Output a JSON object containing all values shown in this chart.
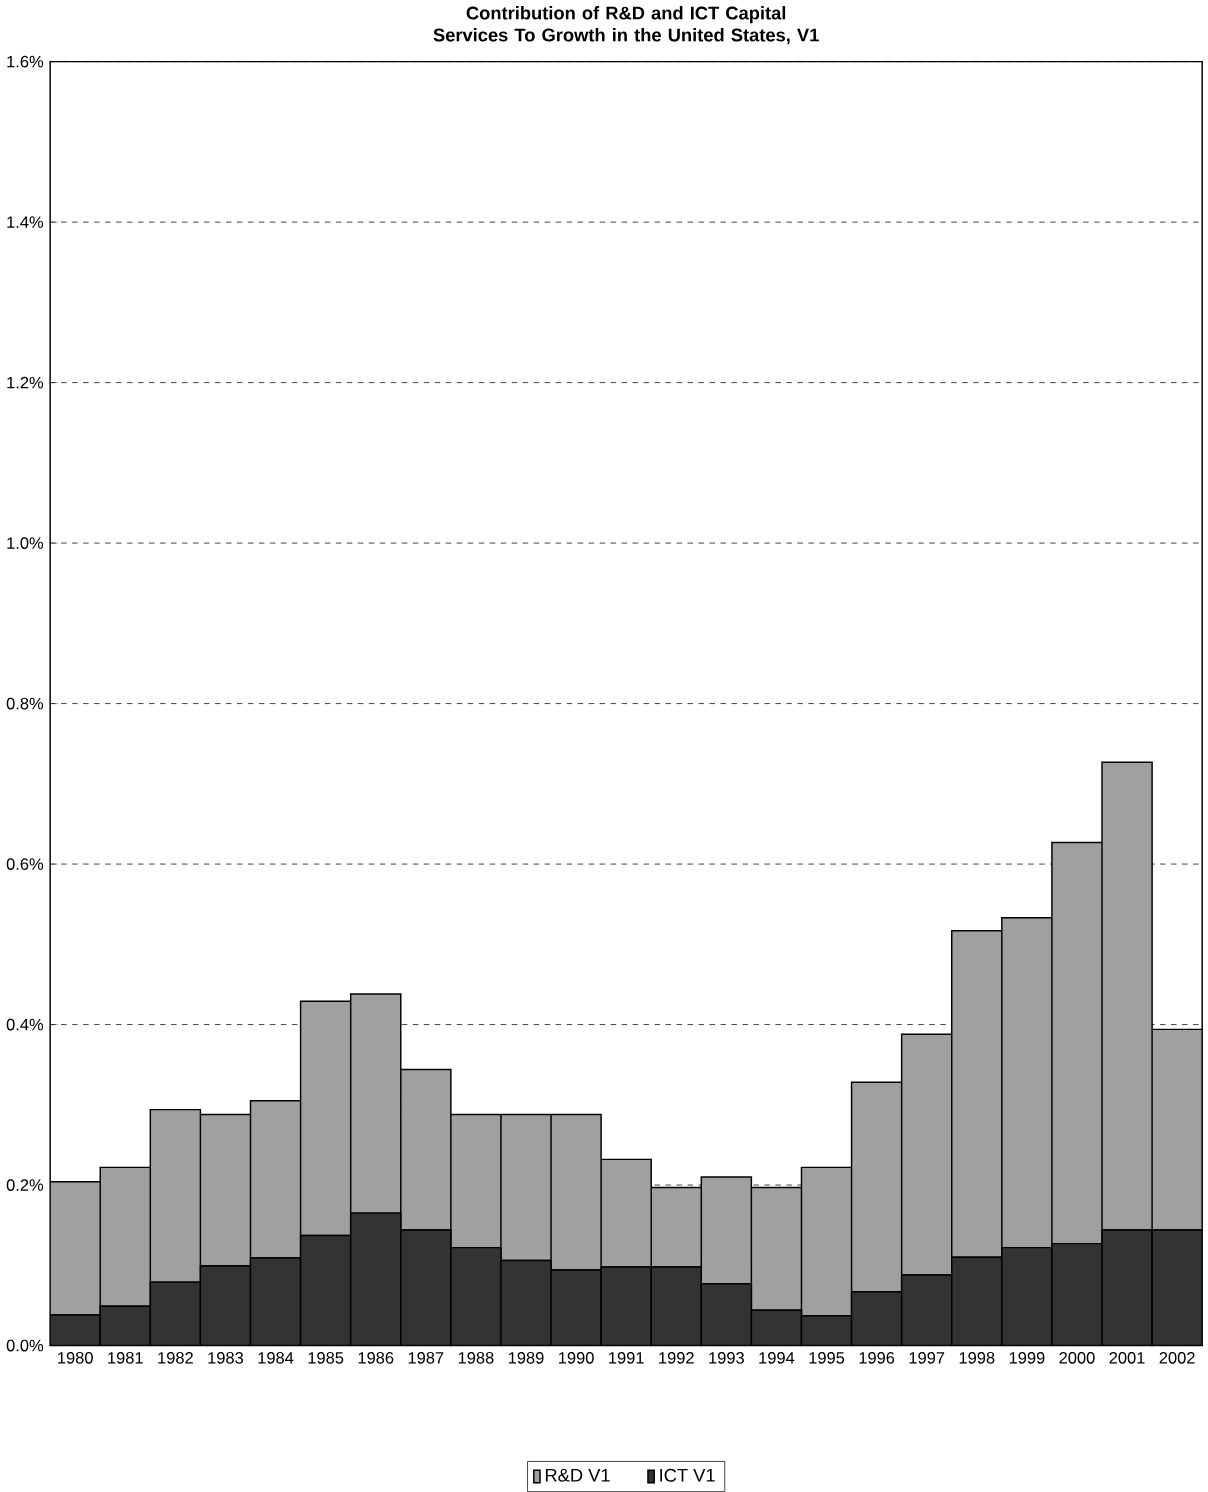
{
  "chart_data": {
    "type": "bar",
    "title": "Contribution of R&D and ICT Capital Services To Growth in the United States, V1",
    "categories": [
      "1980",
      "1981",
      "1982",
      "1983",
      "1984",
      "1985",
      "1986",
      "1987",
      "1988",
      "1989",
      "1990",
      "1991",
      "1992",
      "1993",
      "1994",
      "1995",
      "1996",
      "1997",
      "1998",
      "1999",
      "2000",
      "2001",
      "2002"
    ],
    "stacked": true,
    "series": [
      {
        "name": "ICT V1",
        "color": "#333333",
        "values": [
          0.038,
          0.049,
          0.079,
          0.099,
          0.109,
          0.137,
          0.165,
          0.144,
          0.122,
          0.106,
          0.094,
          0.098,
          0.098,
          0.077,
          0.044,
          0.037,
          0.067,
          0.088,
          0.11,
          0.122,
          0.127,
          0.144,
          0.144
        ]
      },
      {
        "name": "R&D V1",
        "color": "#a0a0a0",
        "values": [
          0.166,
          0.173,
          0.215,
          0.189,
          0.196,
          0.292,
          0.273,
          0.2,
          0.166,
          0.182,
          0.194,
          0.134,
          0.099,
          0.133,
          0.153,
          0.185,
          0.261,
          0.3,
          0.407,
          0.411,
          0.5,
          0.583,
          0.25
        ]
      }
    ],
    "ylim": [
      0,
      1.6
    ],
    "yticks": [
      {
        "value": 0,
        "label": "0.0%"
      },
      {
        "value": 0.2,
        "label": "0.2%"
      },
      {
        "value": 0.4,
        "label": "0.4%"
      },
      {
        "value": 0.6,
        "label": "0.6%"
      },
      {
        "value": 0.8,
        "label": "0.8%"
      },
      {
        "value": 1.0,
        "label": "1.0%"
      },
      {
        "value": 1.2,
        "label": "1.2%"
      },
      {
        "value": 1.4,
        "label": "1.4%"
      },
      {
        "value": 1.6,
        "label": "1.6%"
      }
    ],
    "grid": "y",
    "legend": "bottom"
  }
}
